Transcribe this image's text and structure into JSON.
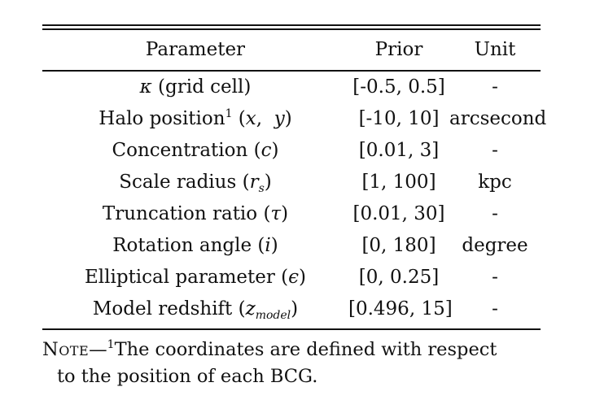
{
  "table": {
    "columns": [
      "Parameter",
      "Prior",
      "Unit"
    ],
    "rows": [
      {
        "name": "κ",
        "detail": " (grid cell)",
        "prior": "[-0.5, 0.5]",
        "unit": "-"
      },
      {
        "name": "Halo position",
        "sup": "1",
        "detail_a": " (",
        "var1": "x",
        "sep": ",  ",
        "var2": "y",
        "detail_b": ")",
        "prior": "[-10, 10]",
        "unit": "arcsecond"
      },
      {
        "name": "Concentration (",
        "var": "c",
        "close": ")",
        "prior": "[0.01, 3]",
        "unit": "-"
      },
      {
        "name": "Scale radius (",
        "var": "r",
        "sub": "s",
        "close": ")",
        "prior": "[1, 100]",
        "unit": "kpc"
      },
      {
        "name": "Truncation ratio (",
        "var": "τ",
        "close": ")",
        "prior": "[0.01, 30]",
        "unit": "-"
      },
      {
        "name": "Rotation angle (",
        "var": "i",
        "close": ")",
        "prior": "[0, 180]",
        "unit": "degree"
      },
      {
        "name": "Elliptical parameter (",
        "var": "ϵ",
        "close": ")",
        "prior": "[0, 0.25]",
        "unit": "-"
      },
      {
        "name": "Model redshift (",
        "var": "z",
        "sub": "model",
        "close": ")",
        "prior": "[0.496, 15]",
        "unit": "-"
      }
    ]
  },
  "note": {
    "label": "Note",
    "dash": "—",
    "sup": "1",
    "line1": "The coordinates are defined with respect",
    "line2": "to the position of each BCG."
  }
}
